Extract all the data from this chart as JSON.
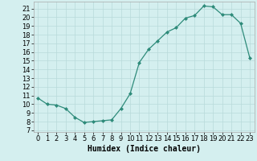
{
  "x": [
    0,
    1,
    2,
    3,
    4,
    5,
    6,
    7,
    8,
    9,
    10,
    11,
    12,
    13,
    14,
    15,
    16,
    17,
    18,
    19,
    20,
    21,
    22,
    23
  ],
  "y": [
    10.7,
    10.0,
    9.9,
    9.5,
    8.5,
    7.9,
    8.0,
    8.1,
    8.2,
    9.5,
    11.2,
    14.8,
    16.3,
    17.3,
    18.3,
    18.8,
    19.9,
    20.2,
    21.3,
    21.2,
    20.3,
    20.3,
    19.3,
    15.3
  ],
  "line_color": "#2e8b7a",
  "marker": "D",
  "marker_size": 2,
  "bg_color": "#d4efef",
  "grid_color": "#b8dada",
  "xlabel": "Humidex (Indice chaleur)",
  "ylabel_ticks": [
    7,
    8,
    9,
    10,
    11,
    12,
    13,
    14,
    15,
    16,
    17,
    18,
    19,
    20,
    21
  ],
  "ylim": [
    6.8,
    21.8
  ],
  "xlim": [
    -0.5,
    23.5
  ],
  "xlabel_fontsize": 7,
  "tick_fontsize": 6,
  "linewidth": 0.9
}
